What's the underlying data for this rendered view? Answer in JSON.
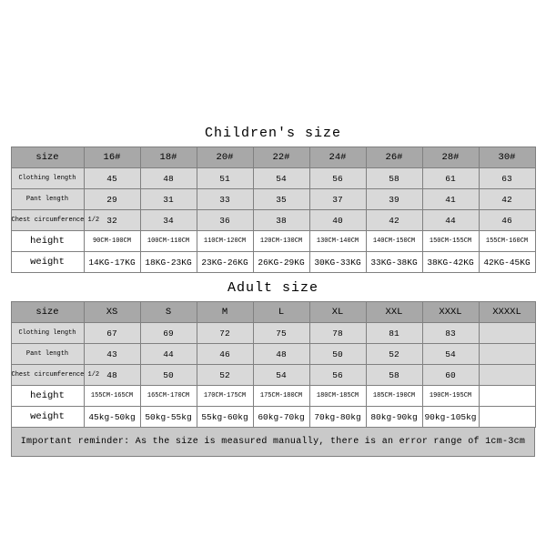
{
  "children": {
    "title": "Children's size",
    "row_labels": [
      "size",
      "Clothing length",
      "Pant length",
      "Chest circumference 1/2",
      "height",
      "weight"
    ],
    "columns": [
      "16#",
      "18#",
      "20#",
      "22#",
      "24#",
      "26#",
      "28#",
      "30#"
    ],
    "rows": [
      [
        "45",
        "48",
        "51",
        "54",
        "56",
        "58",
        "61",
        "63"
      ],
      [
        "29",
        "31",
        "33",
        "35",
        "37",
        "39",
        "41",
        "42"
      ],
      [
        "32",
        "34",
        "36",
        "38",
        "40",
        "42",
        "44",
        "46"
      ],
      [
        "90CM-100CM",
        "100CM-110CM",
        "110CM-120CM",
        "120CM-130CM",
        "130CM-140CM",
        "140CM-150CM",
        "150CM-155CM",
        "155CM-160CM"
      ],
      [
        "14KG-17KG",
        "18KG-23KG",
        "23KG-26KG",
        "26KG-29KG",
        "30KG-33KG",
        "33KG-38KG",
        "38KG-42KG",
        "42KG-45KG"
      ]
    ]
  },
  "adult": {
    "title": "Adult size",
    "row_labels": [
      "size",
      "Clothing length",
      "Pant length",
      "Chest circumference 1/2",
      "height",
      "weight"
    ],
    "columns": [
      "XS",
      "S",
      "M",
      "L",
      "XL",
      "XXL",
      "XXXL",
      "XXXXL"
    ],
    "rows": [
      [
        "67",
        "69",
        "72",
        "75",
        "78",
        "81",
        "83",
        ""
      ],
      [
        "43",
        "44",
        "46",
        "48",
        "50",
        "52",
        "54",
        ""
      ],
      [
        "48",
        "50",
        "52",
        "54",
        "56",
        "58",
        "60",
        ""
      ],
      [
        "155CM-165CM",
        "165CM-170CM",
        "170CM-175CM",
        "175CM-180CM",
        "180CM-185CM",
        "185CM-190CM",
        "190CM-195CM",
        ""
      ],
      [
        "45kg-50kg",
        "50kg-55kg",
        "55kg-60kg",
        "60kg-70kg",
        "70kg-80kg",
        "80kg-90kg",
        "90kg-105kg",
        ""
      ]
    ]
  },
  "reminder": "Important reminder: As the size is measured manually, there is an error range of 1cm-3cm",
  "style": {
    "header_bg": "#a8a8a8",
    "dim_bg": "#d9d9d9",
    "plain_bg": "#ffffff",
    "border_color": "#808080",
    "reminder_bg": "#c9c9c9",
    "font_family": "Courier New",
    "title_fontsize": 15,
    "cell_fontsize": 9.5,
    "tiny_fontsize": 7,
    "med_fontsize": 10.5,
    "page_bg": "#ffffff",
    "col_label_width": 80,
    "col_data_width": 62
  }
}
